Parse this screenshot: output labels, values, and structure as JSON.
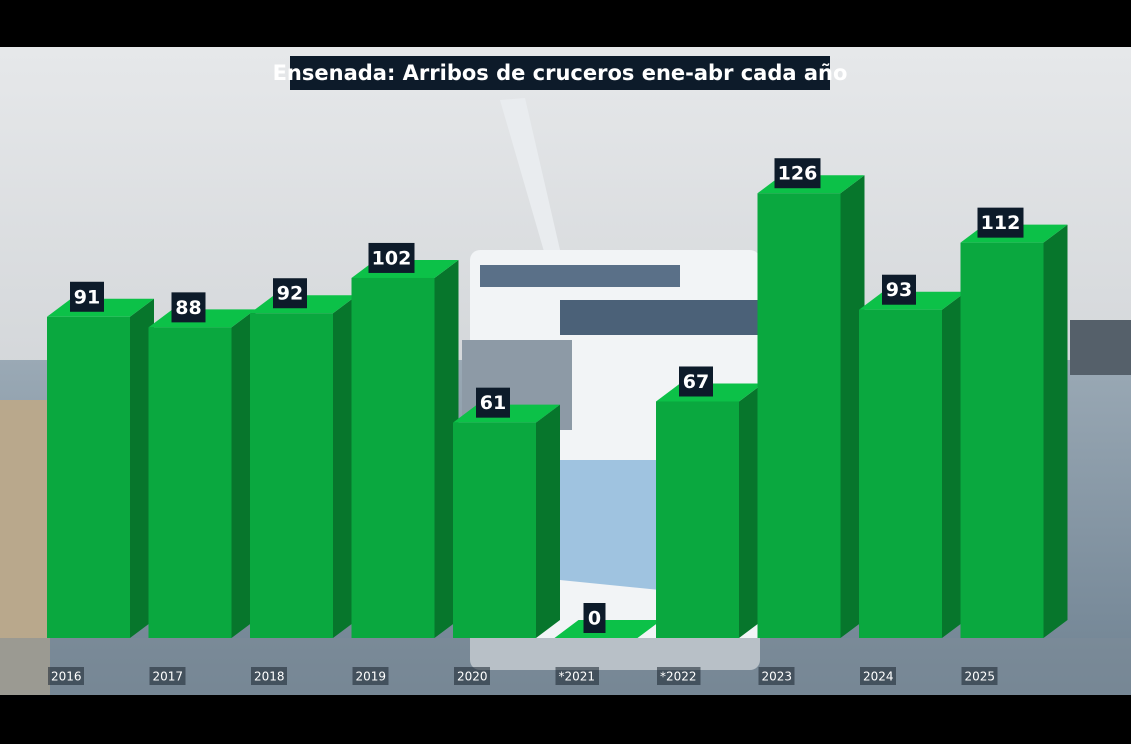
{
  "chart_data": {
    "type": "bar3d",
    "title": "Ensenada: Arribos de cruceros ene-abr cada año",
    "categories": [
      "2016",
      "2017",
      "2018",
      "2019",
      "2020",
      "*2021",
      "*2022",
      "2023",
      "2024",
      "2025"
    ],
    "values": [
      91,
      88,
      92,
      102,
      61,
      0,
      67,
      126,
      93,
      112
    ],
    "color": "#0aa83f"
  }
}
